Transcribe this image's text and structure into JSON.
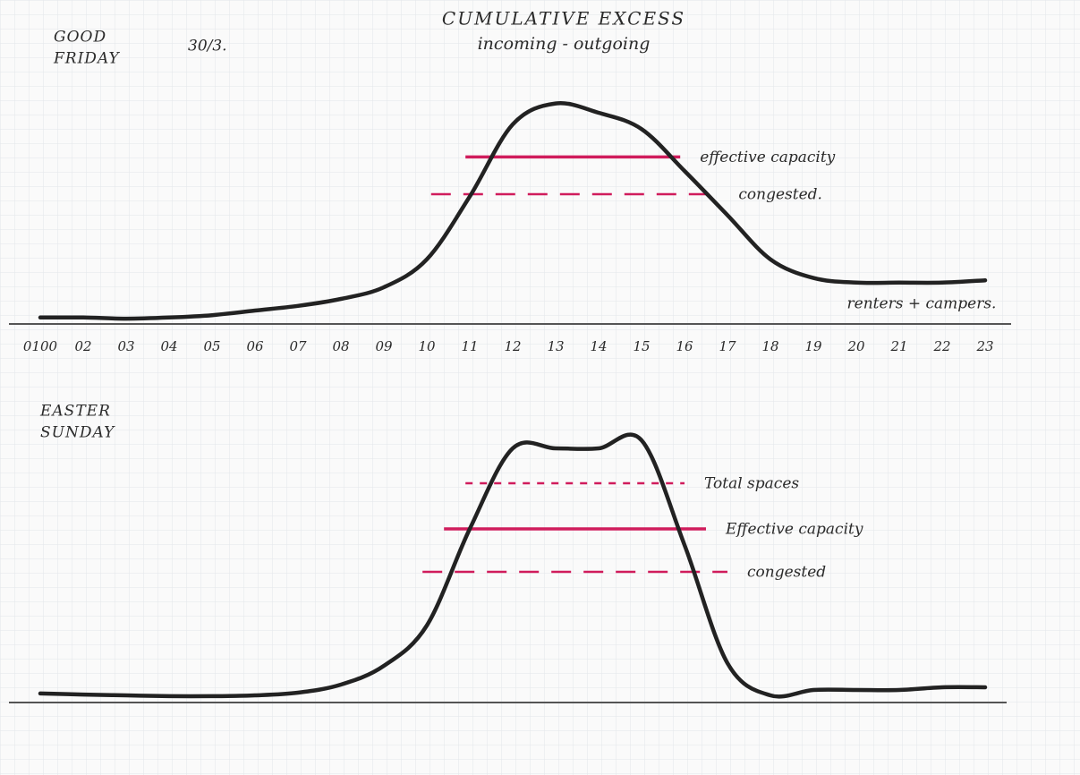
{
  "header": {
    "title": "CUMULATIVE EXCESS",
    "subtitle": "incoming - outgoing"
  },
  "chart_data": [
    {
      "type": "line",
      "title_lines": [
        "GOOD",
        "FRIDAY"
      ],
      "date": "30/3.",
      "categories": [
        "0100",
        "02",
        "03",
        "04",
        "05",
        "06",
        "07",
        "08",
        "09",
        "10",
        "11",
        "12",
        "13",
        "14",
        "15",
        "16",
        "17",
        "18",
        "19",
        "20",
        "21",
        "22",
        "23"
      ],
      "series": [
        {
          "name": "renters + campers.",
          "color": "#222222",
          "values": [
            2,
            2,
            1.5,
            2,
            3,
            5,
            7,
            10,
            15,
            27,
            54,
            85,
            94,
            90,
            83,
            65,
            46,
            27,
            19,
            17,
            17,
            17,
            18
          ]
        }
      ],
      "ylim": [
        0,
        100
      ],
      "reference_lines": [
        {
          "label": "effective capacity",
          "value": 71,
          "span": [
            10.9,
            15.9
          ],
          "style": "solid",
          "color": "#d01c5c"
        },
        {
          "label": "congested.",
          "value": 55,
          "span": [
            10.1,
            16.8
          ],
          "style": "dashed",
          "color": "#d01c5c"
        }
      ]
    },
    {
      "type": "line",
      "title_lines": [
        "EASTER",
        "SUNDAY"
      ],
      "categories": [
        null,
        null,
        null,
        null,
        null,
        null,
        null,
        null,
        null,
        null,
        null,
        null,
        null,
        null,
        null,
        null,
        null,
        null,
        null,
        null,
        null,
        null,
        null
      ],
      "series": [
        {
          "color": "#222222",
          "values": [
            1.7,
            1.3,
            1,
            0.7,
            0.7,
            1,
            2,
            5,
            12,
            27,
            63,
            93,
            93,
            93,
            96,
            57,
            13,
            1,
            3,
            3,
            3,
            4,
            4
          ]
        }
      ],
      "ylim": [
        0,
        100
      ],
      "reference_lines": [
        {
          "label": "Total spaces",
          "value": 80,
          "span": [
            10.9,
            16.0
          ],
          "style": "dotted",
          "color": "#d01c5c"
        },
        {
          "label": "Effective capacity",
          "value": 63,
          "span": [
            10.4,
            16.5
          ],
          "style": "solid",
          "color": "#d01c5c"
        },
        {
          "label": "congested",
          "value": 47,
          "span": [
            9.9,
            17.0
          ],
          "style": "dashed",
          "color": "#d01c5c"
        }
      ]
    }
  ]
}
